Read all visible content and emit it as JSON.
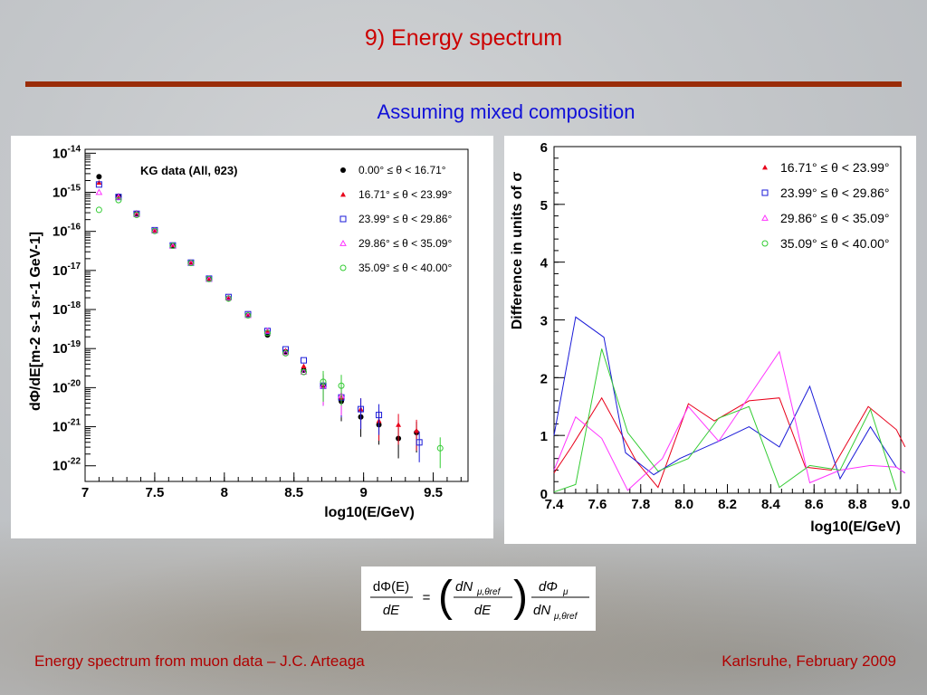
{
  "slide": {
    "title": "9) Energy spectrum",
    "subtitle": "Assuming mixed composition",
    "footer_left": "Energy spectrum from muon data – J.C. Arteaga",
    "footer_right": "Karlsruhe,  February 2009"
  },
  "formula": {
    "lhs_num": "dΦ(E)",
    "lhs_den": "dE",
    "eq": "=",
    "mid_num": "dN",
    "mid_num_sub": "μ,θref",
    "mid_den": "dE",
    "rhs_num": "dΦ",
    "rhs_num_sub": "μ",
    "rhs_den": "dN",
    "rhs_den_sub": "μ,θref"
  },
  "chart_data": [
    {
      "type": "scatter",
      "title": "KG data (All, θ23)",
      "xlabel": "log10(E/GeV)",
      "ylabel": "dΦ/dE[m-2 s-1 sr-1 GeV-1]",
      "xlim": [
        7.0,
        9.75
      ],
      "ylog": true,
      "ylim_exp": [
        -22.4,
        -13.9
      ],
      "x_ticks": [
        "7",
        "7.5",
        "8",
        "8.5",
        "9",
        "9.5"
      ],
      "y_ticks": [
        "10-14",
        "10-15",
        "10-16",
        "10-17",
        "10-18",
        "10-19",
        "10-20",
        "10-21",
        "10-22"
      ],
      "legend_position": "top-right",
      "colors": {
        "s0": "#000000",
        "s1": "#e8001a",
        "s2": "#1a1ad8",
        "s3": "#ff33ff",
        "s4": "#33cc33"
      },
      "series": [
        {
          "name": "0.00° ≤ θ < 16.71°",
          "marker": "filled-circle",
          "x": [
            7.1,
            7.24,
            7.37,
            7.5,
            7.63,
            7.76,
            7.89,
            8.03,
            8.17,
            8.31,
            8.44,
            8.57,
            8.71,
            8.84,
            8.98,
            9.11,
            9.25,
            9.38
          ],
          "y_exp": [
            -14.6,
            -15.1,
            -15.55,
            -15.98,
            -16.37,
            -16.8,
            -17.22,
            -17.72,
            -18.15,
            -18.65,
            -19.08,
            -19.55,
            -19.95,
            -20.35,
            -20.75,
            -20.95,
            -21.3,
            -21.15
          ]
        },
        {
          "name": "16.71° ≤ θ < 23.99°",
          "marker": "filled-triangle",
          "x": [
            7.1,
            7.24,
            7.37,
            7.5,
            7.63,
            7.76,
            7.89,
            8.03,
            8.17,
            8.31,
            8.44,
            8.57,
            8.71,
            8.84,
            8.98,
            9.11,
            9.25,
            9.38
          ],
          "y_exp": [
            -14.75,
            -15.1,
            -15.52,
            -15.97,
            -16.35,
            -16.78,
            -17.2,
            -17.68,
            -18.12,
            -18.55,
            -19.05,
            -19.45,
            -19.92,
            -20.25,
            -20.55,
            -20.85,
            -20.95,
            -21.1
          ]
        },
        {
          "name": "23.99° ≤ θ < 29.86°",
          "marker": "open-square",
          "x": [
            7.1,
            7.24,
            7.37,
            7.5,
            7.63,
            7.76,
            7.89,
            8.03,
            8.17,
            8.31,
            8.44,
            8.57,
            8.71,
            8.84,
            8.98,
            9.11,
            9.4
          ],
          "y_exp": [
            -14.8,
            -15.12,
            -15.55,
            -15.97,
            -16.36,
            -16.8,
            -17.21,
            -17.68,
            -18.12,
            -18.55,
            -19.02,
            -19.3,
            -19.95,
            -20.25,
            -20.55,
            -20.7,
            -21.4
          ]
        },
        {
          "name": "29.86° ≤ θ < 35.09°",
          "marker": "open-triangle",
          "x": [
            7.1,
            7.24,
            7.37,
            7.5,
            7.63,
            7.76,
            7.89,
            8.03,
            8.17,
            8.31,
            8.44,
            8.57,
            8.71,
            8.84
          ],
          "y_exp": [
            -15.0,
            -15.12,
            -15.56,
            -15.98,
            -16.38,
            -16.8,
            -17.22,
            -17.7,
            -18.15,
            -18.55,
            -19.1,
            -19.6,
            -19.95,
            -20.2
          ]
        },
        {
          "name": "35.09° ≤ θ < 40.00°",
          "marker": "open-circle",
          "x": [
            7.1,
            7.24,
            7.37,
            7.5,
            7.63,
            7.76,
            7.89,
            8.03,
            8.17,
            8.31,
            8.44,
            8.57,
            8.71,
            8.84,
            9.55
          ],
          "y_exp": [
            -15.45,
            -15.2,
            -15.58,
            -15.99,
            -16.37,
            -16.81,
            -17.22,
            -17.72,
            -18.15,
            -18.6,
            -19.12,
            -19.6,
            -19.85,
            -19.95,
            -21.55
          ]
        }
      ]
    },
    {
      "type": "line",
      "xlabel": "log10(E/GeV)",
      "ylabel": "Difference in units of σ",
      "xlim": [
        7.4,
        9.0
      ],
      "ylim": [
        0,
        6
      ],
      "x_ticks": [
        "7.4",
        "7.6",
        "7.8",
        "8.0",
        "8.2",
        "8.4",
        "8.6",
        "8.8",
        "9.0"
      ],
      "y_ticks": [
        "0",
        "1",
        "2",
        "3",
        "4",
        "5",
        "6"
      ],
      "legend_position": "top-right",
      "colors": {
        "s1": "#e8001a",
        "s2": "#1a1ad8",
        "s3": "#ff33ff",
        "s4": "#33cc33"
      },
      "series": [
        {
          "name": "16.71° ≤ θ < 23.99°",
          "marker": "filled-triangle",
          "x": [
            7.4,
            7.48,
            7.62,
            7.78,
            7.88,
            8.02,
            8.14,
            8.3,
            8.44,
            8.56,
            8.68,
            8.85,
            8.98,
            9.02
          ],
          "y": [
            0.35,
            0.8,
            1.65,
            0.55,
            0.1,
            1.55,
            1.25,
            1.6,
            1.65,
            0.45,
            0.4,
            1.5,
            1.1,
            0.8
          ]
        },
        {
          "name": "23.99° ≤ θ < 29.86°",
          "marker": "open-square",
          "x": [
            7.4,
            7.5,
            7.63,
            7.73,
            7.86,
            7.98,
            8.16,
            8.3,
            8.44,
            8.58,
            8.72,
            8.86,
            8.98,
            9.02
          ],
          "y": [
            1.0,
            3.05,
            2.7,
            0.7,
            0.32,
            0.6,
            0.9,
            1.15,
            0.8,
            1.85,
            0.25,
            1.15,
            0.45,
            0.35
          ]
        },
        {
          "name": "29.86° ≤ θ < 35.09°",
          "marker": "open-triangle",
          "x": [
            7.4,
            7.5,
            7.62,
            7.74,
            7.9,
            8.02,
            8.16,
            8.44,
            8.58,
            8.72,
            8.86,
            8.98,
            9.02
          ],
          "y": [
            0.4,
            1.32,
            0.95,
            0.05,
            0.6,
            1.5,
            0.9,
            2.45,
            0.18,
            0.4,
            0.48,
            0.45,
            0.35
          ]
        },
        {
          "name": "35.09° ≤ θ < 40.00°",
          "marker": "open-circle",
          "x": [
            7.4,
            7.5,
            7.62,
            7.74,
            7.88,
            8.02,
            8.16,
            8.3,
            8.44,
            8.58,
            8.72,
            8.86,
            8.98
          ],
          "y": [
            0.02,
            0.15,
            2.5,
            1.05,
            0.38,
            0.6,
            1.3,
            1.5,
            0.1,
            0.48,
            0.4,
            1.45,
            0.05
          ]
        }
      ]
    }
  ]
}
